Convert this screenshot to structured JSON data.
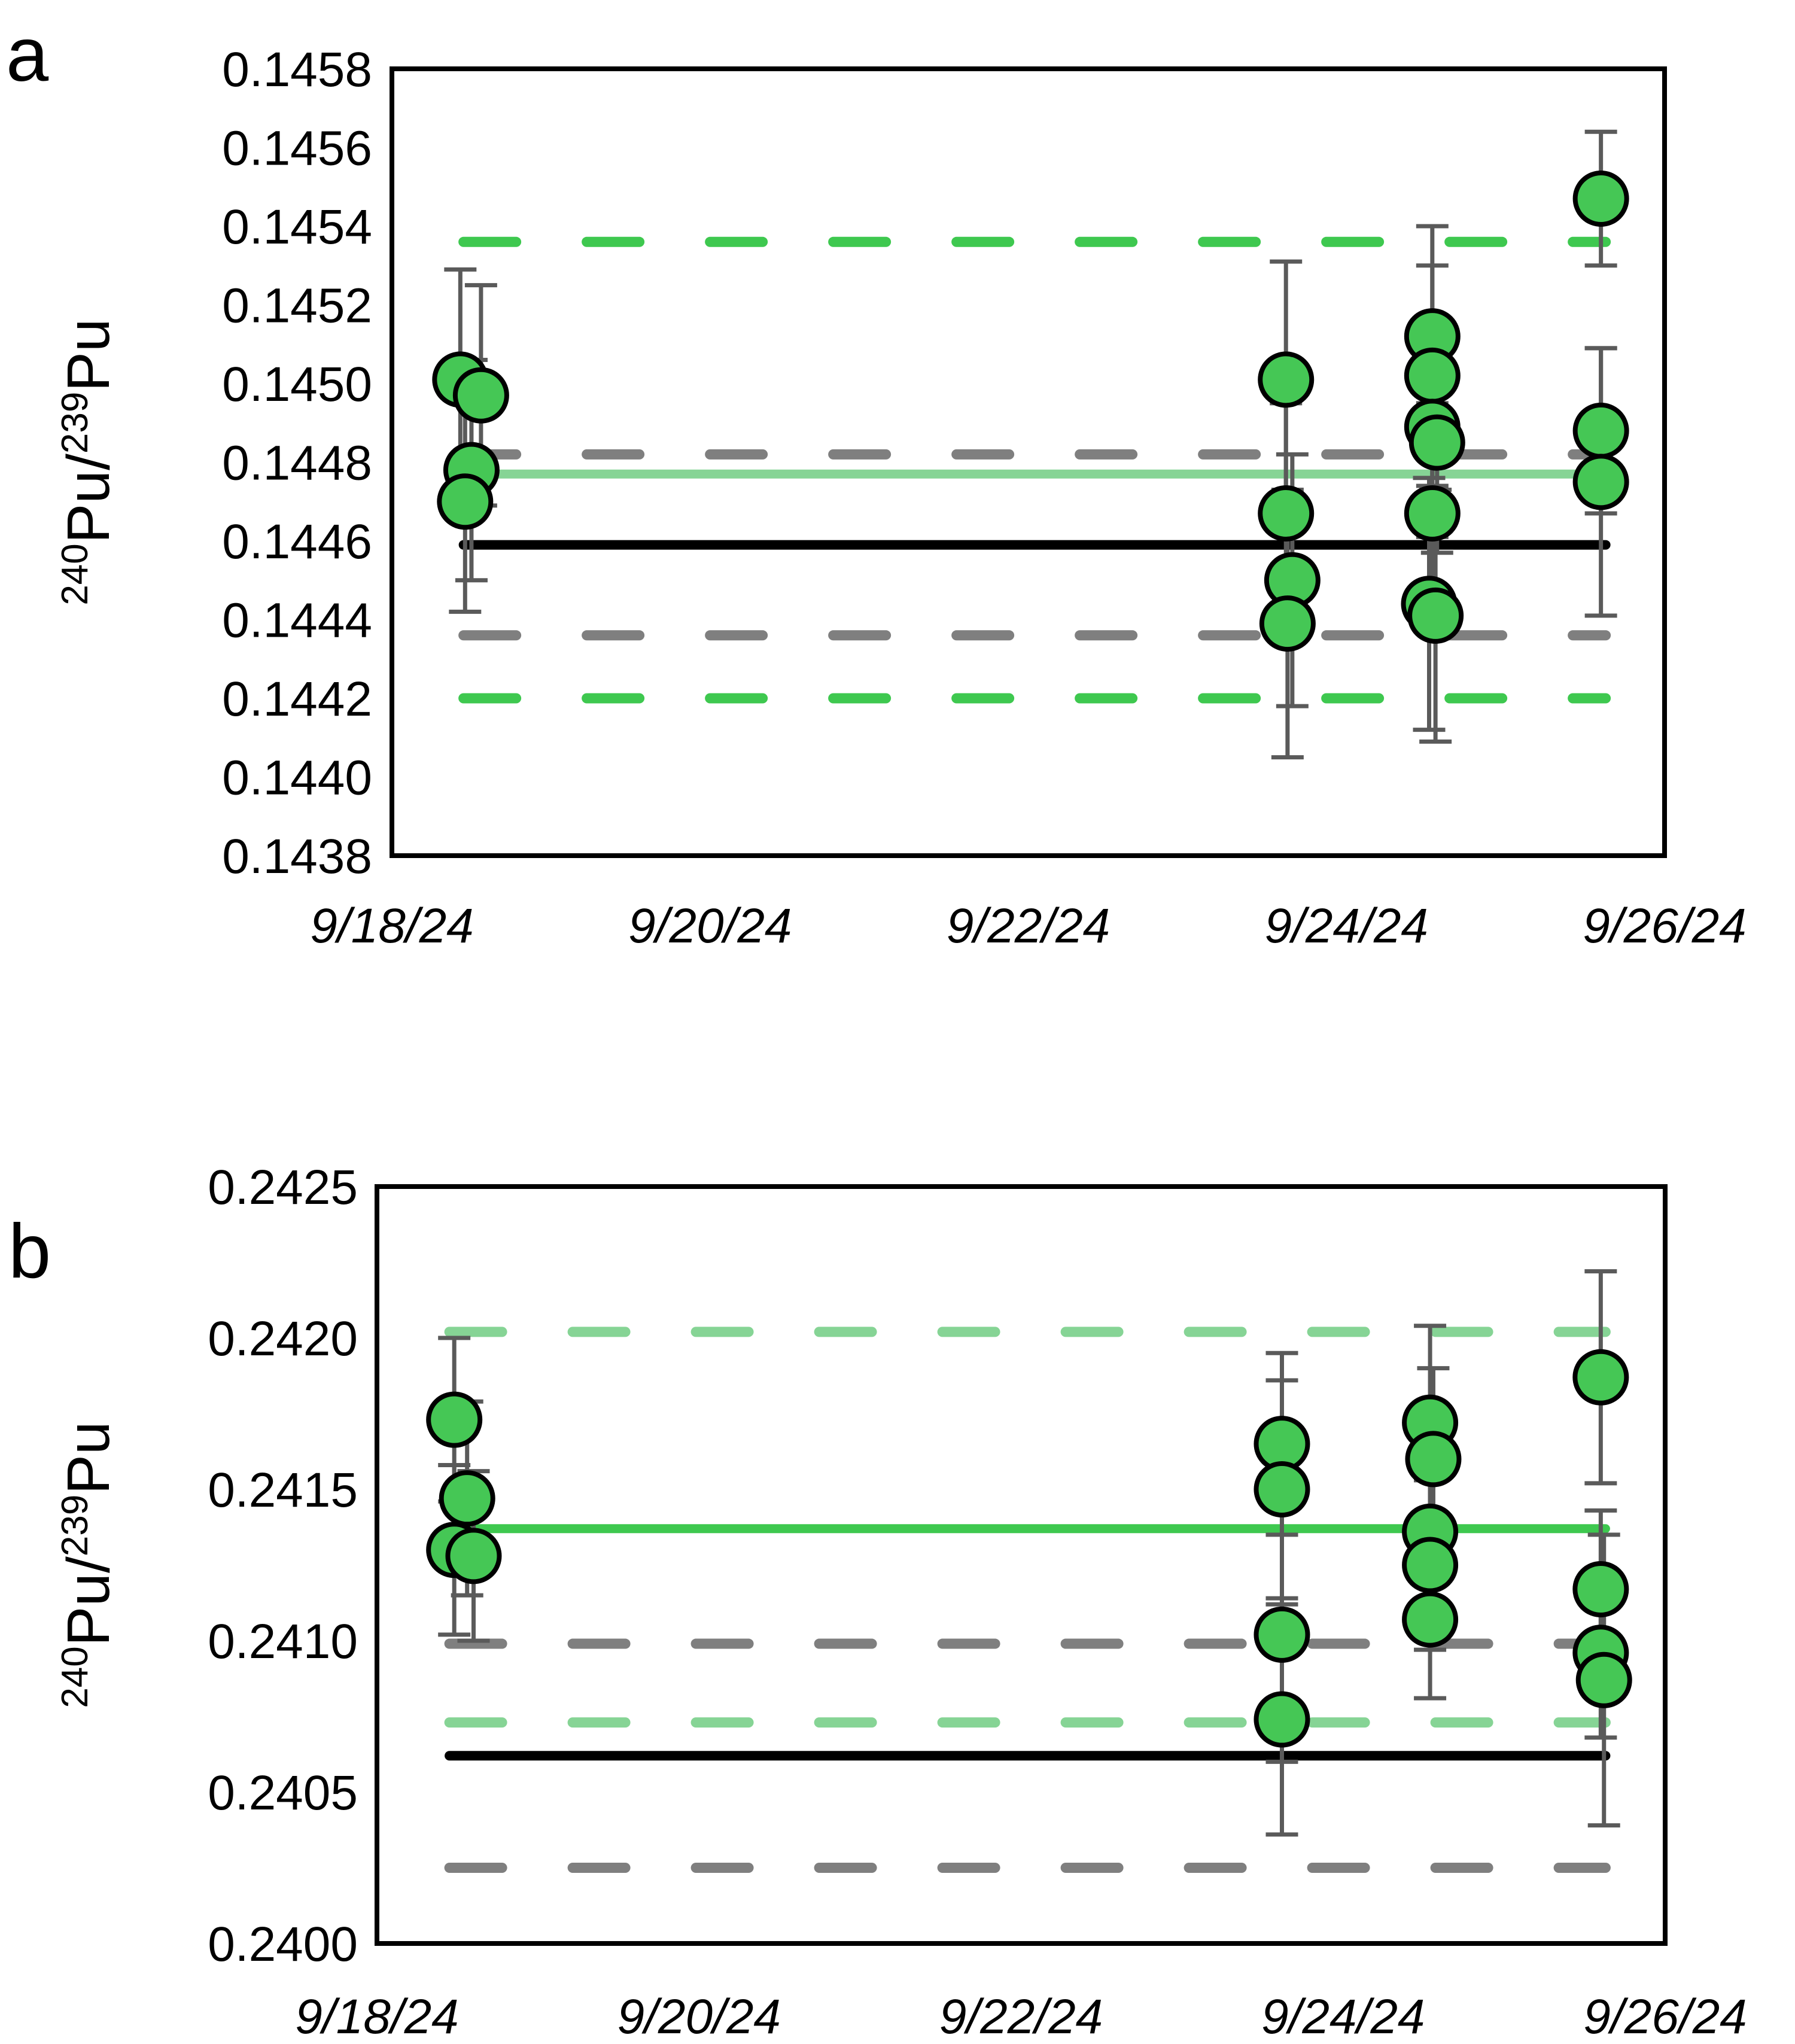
{
  "panels": [
    {
      "letter": "a",
      "y_title": {
        "sup_a": "240",
        "base_a": "Pu/",
        "sup_b": "239",
        "base_b": "Pu"
      }
    },
    {
      "letter": "b",
      "y_title": {
        "sup_a": "240",
        "base_a": "Pu/",
        "sup_b": "239",
        "base_b": "Pu"
      }
    }
  ],
  "colors": {
    "bright_green": "#3ec84f",
    "pale_green": "#86d495",
    "point_fill": "#45c755",
    "point_stroke": "#000000",
    "gray_dash": "#7f7f7f",
    "error_bar": "#5a5a5a",
    "black_line": "#000000",
    "axis_box": "#000000",
    "text": "#000000"
  },
  "chart_data": [
    {
      "type": "scatter",
      "panel": "a",
      "title": "",
      "xlabel": "",
      "ylabel": "240Pu/239Pu",
      "x_tick_labels": [
        "9/18/24",
        "9/20/24",
        "9/22/24",
        "9/24/24",
        "9/26/24"
      ],
      "x_tick_days": [
        0,
        2,
        4,
        6,
        8
      ],
      "x_range_days": [
        0,
        8
      ],
      "ylim": [
        0.1438,
        0.1458
      ],
      "y_tick_labels": [
        "0.1458",
        "0.1456",
        "0.1454",
        "0.1452",
        "0.1450",
        "0.1448",
        "0.1446",
        "0.1444",
        "0.1442",
        "0.1440",
        "0.1438"
      ],
      "grid": false,
      "legend": "none",
      "line_span_days": [
        0.45,
        7.63
      ],
      "ref_lines": [
        {
          "name": "upper-green-dashed",
          "y": 0.14536,
          "style": "dashed",
          "color": "#3ec84f"
        },
        {
          "name": "upper-gray-dashed",
          "y": 0.14482,
          "style": "dashed",
          "color": "#7f7f7f"
        },
        {
          "name": "green-solid-mean",
          "y": 0.14477,
          "style": "solid",
          "color": "#86d495"
        },
        {
          "name": "black-reference",
          "y": 0.14459,
          "style": "solid",
          "color": "#000000"
        },
        {
          "name": "lower-gray-dashed",
          "y": 0.14436,
          "style": "dashed",
          "color": "#7f7f7f"
        },
        {
          "name": "lower-green-dashed",
          "y": 0.1442,
          "style": "dashed",
          "color": "#3ec84f"
        }
      ],
      "points": [
        {
          "x": 0.43,
          "y": 0.14501,
          "err": 0.00028
        },
        {
          "x": 0.56,
          "y": 0.14497,
          "err": 0.00028
        },
        {
          "x": 0.5,
          "y": 0.14478,
          "err": 0.00028
        },
        {
          "x": 0.46,
          "y": 0.1447,
          "err": 0.00028
        },
        {
          "x": 5.62,
          "y": 0.14501,
          "err": 0.0003
        },
        {
          "x": 5.62,
          "y": 0.14467,
          "err": 0.00028
        },
        {
          "x": 5.66,
          "y": 0.1445,
          "err": 0.00032
        },
        {
          "x": 5.63,
          "y": 0.14439,
          "err": 0.00034
        },
        {
          "x": 6.54,
          "y": 0.14512,
          "err": 0.00028
        },
        {
          "x": 6.54,
          "y": 0.14502,
          "err": 0.00028
        },
        {
          "x": 6.54,
          "y": 0.14489,
          "err": 0.00028
        },
        {
          "x": 6.57,
          "y": 0.14485,
          "err": 0.00028
        },
        {
          "x": 6.54,
          "y": 0.14467,
          "err": 0.00028
        },
        {
          "x": 6.52,
          "y": 0.14444,
          "err": 0.00032
        },
        {
          "x": 6.56,
          "y": 0.14441,
          "err": 0.00032
        },
        {
          "x": 7.6,
          "y": 0.14547,
          "err": 0.00017
        },
        {
          "x": 7.6,
          "y": 0.14488,
          "err": 0.00021
        },
        {
          "x": 7.6,
          "y": 0.14475,
          "err": 0.00034
        }
      ]
    },
    {
      "type": "scatter",
      "panel": "b",
      "title": "",
      "xlabel": "",
      "ylabel": "240Pu/239Pu",
      "x_tick_labels": [
        "9/18/24",
        "9/20/24",
        "9/22/24",
        "9/24/24",
        "9/26/24"
      ],
      "x_tick_days": [
        0,
        2,
        4,
        6,
        8
      ],
      "x_range_days": [
        0,
        8
      ],
      "ylim": [
        0.24,
        0.2425
      ],
      "y_tick_labels": [
        "0.2425",
        "0.2420",
        "0.2415",
        "0.2410",
        "0.2405",
        "0.2400"
      ],
      "grid": false,
      "legend": "none",
      "line_span_days": [
        0.45,
        7.63
      ],
      "ref_lines": [
        {
          "name": "upper-green-dashed",
          "y": 0.24202,
          "style": "dashed",
          "color": "#86d495"
        },
        {
          "name": "green-solid-mean",
          "y": 0.24137,
          "style": "solid",
          "color": "#3ec84f"
        },
        {
          "name": "upper-gray-dashed",
          "y": 0.24099,
          "style": "dashed",
          "color": "#7f7f7f"
        },
        {
          "name": "lower-green-dashed",
          "y": 0.24073,
          "style": "dashed",
          "color": "#86d495"
        },
        {
          "name": "black-reference",
          "y": 0.24062,
          "style": "solid",
          "color": "#000000"
        },
        {
          "name": "lower-gray-dashed",
          "y": 0.24025,
          "style": "dashed",
          "color": "#7f7f7f"
        }
      ],
      "points": [
        {
          "x": 0.48,
          "y": 0.24173,
          "err": 0.00027
        },
        {
          "x": 0.56,
          "y": 0.24147,
          "err": 0.00032
        },
        {
          "x": 0.48,
          "y": 0.2413,
          "err": 0.00028
        },
        {
          "x": 0.6,
          "y": 0.24128,
          "err": 0.00028
        },
        {
          "x": 5.62,
          "y": 0.24165,
          "err": 0.0003
        },
        {
          "x": 5.62,
          "y": 0.2415,
          "err": 0.00036
        },
        {
          "x": 5.62,
          "y": 0.24102,
          "err": 0.00042
        },
        {
          "x": 5.62,
          "y": 0.24074,
          "err": 0.00038
        },
        {
          "x": 6.54,
          "y": 0.24172,
          "err": 0.00032
        },
        {
          "x": 6.56,
          "y": 0.2416,
          "err": 0.0003
        },
        {
          "x": 6.54,
          "y": 0.24136,
          "err": 0.00028
        },
        {
          "x": 6.54,
          "y": 0.24125,
          "err": 0.00028
        },
        {
          "x": 6.54,
          "y": 0.24107,
          "err": 0.00026
        },
        {
          "x": 7.6,
          "y": 0.24187,
          "err": 0.00035
        },
        {
          "x": 7.6,
          "y": 0.24117,
          "err": 0.00026
        },
        {
          "x": 7.6,
          "y": 0.24096,
          "err": 0.00028
        },
        {
          "x": 7.62,
          "y": 0.24087,
          "err": 0.00048
        }
      ]
    }
  ]
}
